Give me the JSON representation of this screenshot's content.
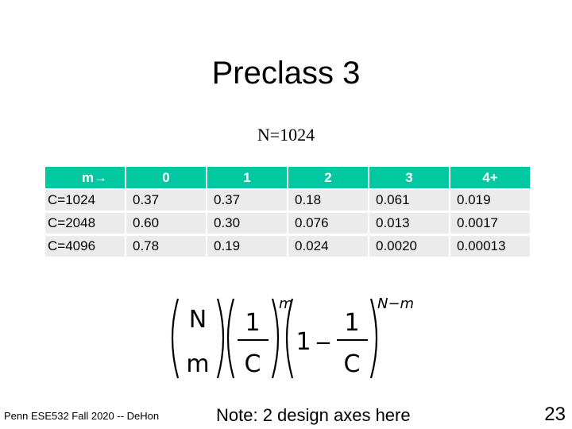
{
  "slide": {
    "title": "Preclass 3",
    "subtitle": "N=1024",
    "footer_left": "Penn ESE532 Fall 2020 -- DeHon",
    "note": "Note: 2 design axes here",
    "page_number": "23"
  },
  "table": {
    "corner_label": "m→",
    "columns": [
      "0",
      "1",
      "2",
      "3",
      "4+"
    ],
    "rows": [
      {
        "label": "C=1024",
        "values": [
          "0.37",
          "0.37",
          "0.18",
          "0.061",
          "0.019"
        ]
      },
      {
        "label": "C=2048",
        "values": [
          "0.60",
          "0.30",
          "0.076",
          "0.013",
          "0.0017"
        ]
      },
      {
        "label": "C=4096",
        "values": [
          "0.78",
          "0.19",
          "0.024",
          "0.0020",
          "0.00013"
        ]
      }
    ]
  },
  "formula": {
    "binom_top": "N",
    "binom_bottom": "m",
    "frac_num": "1",
    "frac_den": "C",
    "exp1": "m",
    "one": "1",
    "minus": "−",
    "exp2": "N−m"
  }
}
